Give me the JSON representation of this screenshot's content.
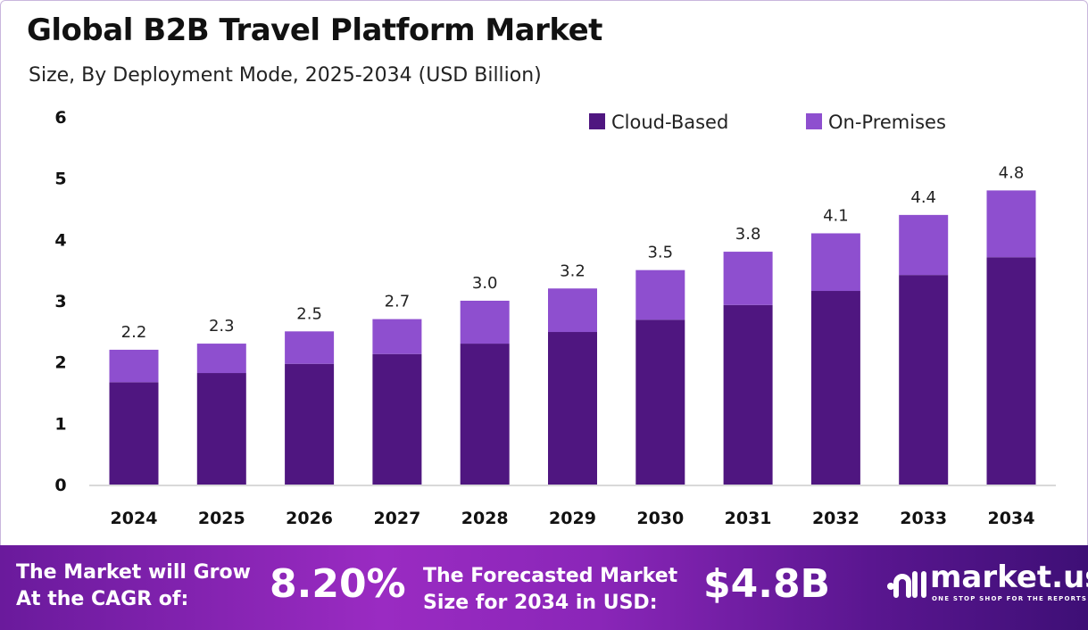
{
  "colors": {
    "cloud": "#4f1680",
    "onprem": "#8e4fcf",
    "axis": "#d9d9d9"
  },
  "chart_data": {
    "type": "bar",
    "stacked": true,
    "title": "Global B2B Travel Platform Market",
    "subtitle": "Size, By Deployment Mode, 2025-2034 (USD Billion)",
    "xlabel": "",
    "ylabel": "",
    "ylim": [
      0,
      6
    ],
    "yticks": [
      "0",
      "1",
      "2",
      "3",
      "4",
      "5",
      "6"
    ],
    "grid": false,
    "legend": "top-right",
    "categories": [
      "2024",
      "2025",
      "2026",
      "2027",
      "2028",
      "2029",
      "2030",
      "2031",
      "2032",
      "2033",
      "2034"
    ],
    "series": [
      {
        "name": "Cloud-Based",
        "values": [
          1.67,
          1.82,
          1.97,
          2.13,
          2.3,
          2.49,
          2.69,
          2.93,
          3.16,
          3.42,
          3.71
        ]
      },
      {
        "name": "On-Premises",
        "values": [
          0.53,
          0.48,
          0.53,
          0.57,
          0.7,
          0.71,
          0.81,
          0.87,
          0.94,
          0.98,
          1.09
        ]
      }
    ],
    "totals": [
      "2.2",
      "2.3",
      "2.5",
      "2.7",
      "3.0",
      "3.2",
      "3.5",
      "3.8",
      "4.1",
      "4.4",
      "4.8"
    ]
  },
  "footer": {
    "cagr_label_1": "The Market will Grow",
    "cagr_label_2": "At the CAGR of:",
    "cagr_value": "8.20%",
    "forecast_label_1": "The Forecasted Market",
    "forecast_label_2": "Size for 2034 in USD:",
    "forecast_value": "$4.8B",
    "logo_text": "market.us",
    "logo_tagline": "ONE STOP SHOP FOR THE REPORTS"
  }
}
